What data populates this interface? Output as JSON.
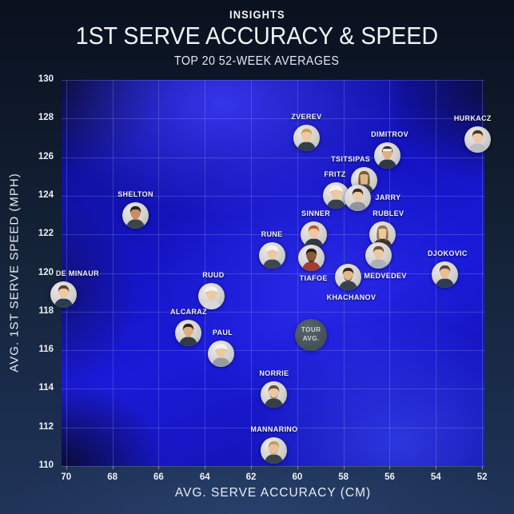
{
  "header": {
    "kicker": "INSIGHTS",
    "title": "1ST SERVE ACCURACY & SPEED",
    "subtitle": "TOP 20 52-WEEK AVERAGES"
  },
  "chart_data": {
    "type": "scatter",
    "title": "1ST SERVE ACCURACY & SPEED",
    "subtitle": "TOP 20 52-WEEK AVERAGES",
    "xlabel": "AVG. SERVE ACCURACY (CM)",
    "ylabel": "AVG. 1ST SERVE SPEED (MPH)",
    "x_ticks": [
      70,
      68,
      66,
      64,
      62,
      60,
      58,
      56,
      54,
      52
    ],
    "y_ticks": [
      130,
      128,
      126,
      124,
      122,
      120,
      118,
      116,
      114,
      112,
      110
    ],
    "x_axis_reversed": true,
    "x_range_lr": [
      70.2,
      51.9
    ],
    "y_range": [
      110,
      130
    ],
    "grid": true,
    "points": [
      {
        "name": "ZVEREV",
        "accuracy": 59.6,
        "speed": 127.0,
        "label_pos": "above",
        "label_dx": 0,
        "avatar": {
          "skin": "#ecc9a3",
          "hair": "#c8a258",
          "shirt": "#333d47"
        }
      },
      {
        "name": "HURKACZ",
        "accuracy": 52.2,
        "speed": 126.9,
        "label_pos": "above",
        "label_dx": -6,
        "avatar": {
          "skin": "#ecc9a3",
          "hair": "#4a3828",
          "shirt": "#b9bec4"
        }
      },
      {
        "name": "DIMITROV",
        "accuracy": 56.1,
        "speed": 126.1,
        "label_pos": "above",
        "label_dx": 3,
        "avatar": {
          "skin": "#dfb083",
          "hair": "#3b2d20",
          "shirt": "#2f3a42",
          "headband": true
        }
      },
      {
        "name": "TSITSIPAS",
        "accuracy": 57.1,
        "speed": 124.8,
        "label_pos": "above",
        "label_dx": -17,
        "avatar": {
          "skin": "#e2b588",
          "hair": "#7a5c35",
          "shirt": "#3a4148",
          "long_hair": true
        }
      },
      {
        "name": "FRITZ",
        "accuracy": 58.3,
        "speed": 124.0,
        "label_pos": "above",
        "label_dx": -2,
        "avatar": {
          "skin": "#ecc9a3",
          "hair": "#6b4e2e",
          "shirt": "#39424c",
          "cap": true
        }
      },
      {
        "name": "JARRY",
        "accuracy": 57.4,
        "speed": 123.9,
        "label_pos": "right",
        "label_dx": 0,
        "avatar": {
          "skin": "#ecc9a3",
          "hair": "#3a2d22",
          "shirt": "#8e959c"
        }
      },
      {
        "name": "SHELTON",
        "accuracy": 67.0,
        "speed": 123.0,
        "label_pos": "above",
        "label_dx": 0,
        "avatar": {
          "skin": "#c98f62",
          "hair": "#2c2119",
          "shirt": "#3c444d"
        }
      },
      {
        "name": "SINNER",
        "accuracy": 59.3,
        "speed": 122.0,
        "label_pos": "above",
        "label_dx": 3,
        "avatar": {
          "skin": "#eec8a0",
          "hair": "#b5572e",
          "shirt": "#323b45"
        }
      },
      {
        "name": "RUBLEV",
        "accuracy": 56.3,
        "speed": 122.0,
        "label_pos": "above",
        "label_dx": 7,
        "avatar": {
          "skin": "#ecc9a3",
          "hair": "#9a7544",
          "shirt": "#43342f",
          "long_hair": true
        }
      },
      {
        "name": "RUNE",
        "accuracy": 61.1,
        "speed": 120.9,
        "label_pos": "above",
        "label_dx": 0,
        "avatar": {
          "skin": "#ecc9a3",
          "hair": "#c8a258",
          "shirt": "#3d4750",
          "cap": true
        }
      },
      {
        "name": "MEDVEDEV",
        "accuracy": 56.5,
        "speed": 120.9,
        "label_pos": "below",
        "label_dx": 9,
        "avatar": {
          "skin": "#ecc9a3",
          "hair": "#6b5132",
          "shirt": "#aab1b8"
        }
      },
      {
        "name": "TIAFOE",
        "accuracy": 59.4,
        "speed": 120.8,
        "label_pos": "below",
        "label_dx": 3,
        "avatar": {
          "skin": "#8a5a36",
          "hair": "#241b14",
          "shirt": "#a23b35",
          "beard": true
        }
      },
      {
        "name": "DJOKOVIC",
        "accuracy": 53.6,
        "speed": 119.9,
        "label_pos": "above",
        "label_dx": 3,
        "avatar": {
          "skin": "#e7bd94",
          "hair": "#5c452c",
          "shirt": "#2e3e52"
        }
      },
      {
        "name": "KHACHANOV",
        "accuracy": 57.8,
        "speed": 119.8,
        "label_pos": "below",
        "label_dx": 4,
        "avatar": {
          "skin": "#e4b78d",
          "hair": "#342820",
          "shirt": "#39424c",
          "beard": true
        }
      },
      {
        "name": "DE MINAUR",
        "accuracy": 70.1,
        "speed": 118.9,
        "label_pos": "above",
        "label_dx": 17,
        "avatar": {
          "skin": "#ecc9a3",
          "hair": "#5e4227",
          "shirt": "#2c3a52"
        }
      },
      {
        "name": "RUUD",
        "accuracy": 63.7,
        "speed": 118.8,
        "label_pos": "above",
        "label_dx": 2,
        "avatar": {
          "skin": "#ecc9a3",
          "hair": "#6b4e2e",
          "shirt": "#d7dadc",
          "cap": true
        }
      },
      {
        "name": "ALCARAZ",
        "accuracy": 64.7,
        "speed": 116.9,
        "label_pos": "above",
        "label_dx": 0,
        "avatar": {
          "skin": "#dfae7f",
          "hair": "#2e241b",
          "shirt": "#333c45"
        }
      },
      {
        "name": "PAUL",
        "accuracy": 63.3,
        "speed": 115.8,
        "label_pos": "above",
        "label_dx": 2,
        "avatar": {
          "skin": "#ecc9a3",
          "hair": "#6b4e2e",
          "shirt": "#969ca3",
          "cap": true
        }
      },
      {
        "name": "NORRIE",
        "accuracy": 61.0,
        "speed": 113.7,
        "label_pos": "above",
        "label_dx": 0,
        "avatar": {
          "skin": "#ecc9a3",
          "hair": "#6a4f30",
          "shirt": "#363f48",
          "beard": true
        }
      },
      {
        "name": "MANNARINO",
        "accuracy": 61.0,
        "speed": 110.8,
        "label_pos": "above",
        "label_dx": 0,
        "avatar": {
          "skin": "#e6c09a",
          "hair": "#c3996a",
          "shirt": "#394349",
          "beard": true
        }
      }
    ],
    "tour_avg": {
      "label_line1": "TOUR",
      "label_line2": "AVG.",
      "accuracy": 59.4,
      "speed": 116.8
    }
  },
  "colors": {
    "plot_blue": "#1a1ad8",
    "page_bg": "#152439",
    "grid": "rgba(158,172,232,0.26)",
    "tick_text": "#edf1f6",
    "label_text": "#f3f5f8",
    "tour_avg_circle": "#46545a"
  }
}
